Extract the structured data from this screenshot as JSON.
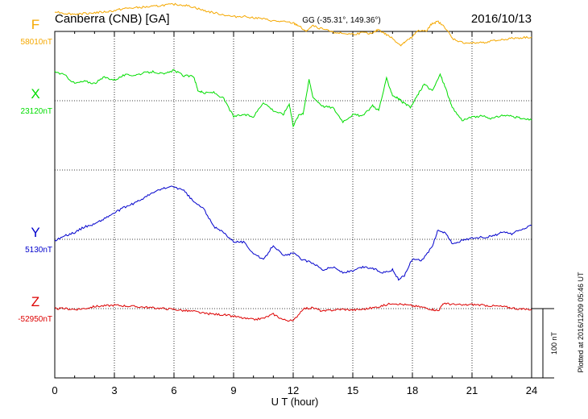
{
  "header": {
    "station": "Canberra (CNB)  [GA]",
    "coords": "GG (-35.31°, 149.36°)",
    "date": "2016/10/13"
  },
  "side_note": "Plotted at 2016/12/09 05:46 UT",
  "scale_label": "100 nT",
  "chart_data": {
    "type": "line",
    "xlabel": "U T (hour)",
    "xlim": [
      0,
      24
    ],
    "xticks": [
      "0",
      "3",
      "6",
      "9",
      "12",
      "15",
      "18",
      "21",
      "24"
    ],
    "scale_nT": 100,
    "series": [
      {
        "name": "F",
        "baseline": "58010nT",
        "color": "#f5a800",
        "baseline_offset_units": 5,
        "points": [
          [
            0,
            29
          ],
          [
            0.5,
            26
          ],
          [
            1,
            25
          ],
          [
            1.5,
            26
          ],
          [
            2,
            27
          ],
          [
            2.5,
            28
          ],
          [
            3,
            30
          ],
          [
            3.5,
            33
          ],
          [
            4,
            34
          ],
          [
            4.5,
            35
          ],
          [
            5,
            36
          ],
          [
            5.5,
            38
          ],
          [
            6,
            39
          ],
          [
            6.5,
            38
          ],
          [
            7,
            35
          ],
          [
            7.5,
            30
          ],
          [
            8,
            27
          ],
          [
            8.5,
            24
          ],
          [
            9,
            21
          ],
          [
            9.5,
            22
          ],
          [
            10,
            20
          ],
          [
            10.5,
            18
          ],
          [
            11,
            15
          ],
          [
            11.5,
            14
          ],
          [
            12,
            12
          ],
          [
            12.3,
            8
          ],
          [
            12.6,
            0
          ],
          [
            13,
            8
          ],
          [
            13.5,
            3
          ],
          [
            14,
            -1
          ],
          [
            14.5,
            -3
          ],
          [
            15,
            -4
          ],
          [
            15.5,
            -2
          ],
          [
            16,
            -3
          ],
          [
            16.3,
            3
          ],
          [
            16.6,
            -3
          ],
          [
            17,
            -10
          ],
          [
            17.4,
            -20
          ],
          [
            17.6,
            -16
          ],
          [
            18,
            -8
          ],
          [
            18.3,
            2
          ],
          [
            18.7,
            0
          ],
          [
            19,
            12
          ],
          [
            19.3,
            14
          ],
          [
            19.7,
            4
          ],
          [
            20,
            -10
          ],
          [
            20.5,
            -16
          ],
          [
            21,
            -17
          ],
          [
            21.5,
            -16
          ],
          [
            22,
            -14
          ],
          [
            22.5,
            -12
          ],
          [
            23,
            -10
          ],
          [
            23.5,
            -9
          ],
          [
            24,
            -8
          ]
        ]
      },
      {
        "name": "X",
        "baseline": "23120nT",
        "color": "#00dd00",
        "baseline_offset_units": 4,
        "points": [
          [
            0,
            42
          ],
          [
            0.5,
            37
          ],
          [
            1,
            25
          ],
          [
            1.5,
            28
          ],
          [
            2,
            25
          ],
          [
            2.5,
            34
          ],
          [
            3,
            30
          ],
          [
            3.5,
            37
          ],
          [
            4,
            37
          ],
          [
            4.5,
            40
          ],
          [
            5,
            42
          ],
          [
            5.5,
            38
          ],
          [
            6,
            44
          ],
          [
            6.5,
            36
          ],
          [
            7,
            35
          ],
          [
            7.2,
            15
          ],
          [
            7.5,
            11
          ],
          [
            8,
            12
          ],
          [
            8.5,
            3
          ],
          [
            9,
            -23
          ],
          [
            9.5,
            -20
          ],
          [
            10,
            -23
          ],
          [
            10.5,
            -2
          ],
          [
            11,
            -14
          ],
          [
            11.5,
            -20
          ],
          [
            11.8,
            -4
          ],
          [
            12,
            -36
          ],
          [
            12.3,
            -20
          ],
          [
            12.5,
            -18
          ],
          [
            12.8,
            30
          ],
          [
            13,
            5
          ],
          [
            13.5,
            -8
          ],
          [
            14,
            -10
          ],
          [
            14.5,
            -30
          ],
          [
            15,
            -20
          ],
          [
            15.5,
            -22
          ],
          [
            16,
            -7
          ],
          [
            16.3,
            -14
          ],
          [
            16.7,
            32
          ],
          [
            17,
            8
          ],
          [
            17.3,
            3
          ],
          [
            17.5,
            -2
          ],
          [
            17.9,
            -10
          ],
          [
            18.3,
            10
          ],
          [
            18.6,
            24
          ],
          [
            19,
            14
          ],
          [
            19.4,
            38
          ],
          [
            19.7,
            16
          ],
          [
            20,
            -10
          ],
          [
            20.5,
            -28
          ],
          [
            21,
            -24
          ],
          [
            21.5,
            -22
          ],
          [
            22,
            -26
          ],
          [
            22.5,
            -21
          ],
          [
            23,
            -22
          ],
          [
            23.5,
            -26
          ],
          [
            24,
            -28
          ]
        ]
      },
      {
        "name": "Y",
        "baseline": "5130nT",
        "color": "#0000cc",
        "baseline_offset_units": 2,
        "points": [
          [
            0,
            -2
          ],
          [
            0.5,
            5
          ],
          [
            1,
            10
          ],
          [
            1.5,
            18
          ],
          [
            2,
            22
          ],
          [
            2.5,
            30
          ],
          [
            3,
            38
          ],
          [
            3.5,
            46
          ],
          [
            4,
            52
          ],
          [
            4.5,
            60
          ],
          [
            5,
            68
          ],
          [
            5.5,
            74
          ],
          [
            6,
            76
          ],
          [
            6.5,
            70
          ],
          [
            7,
            54
          ],
          [
            7.5,
            44
          ],
          [
            8,
            18
          ],
          [
            8.5,
            10
          ],
          [
            9,
            -3
          ],
          [
            9.5,
            -4
          ],
          [
            10,
            -20
          ],
          [
            10.5,
            -30
          ],
          [
            11,
            -8
          ],
          [
            11.5,
            -24
          ],
          [
            12,
            -20
          ],
          [
            12.5,
            -30
          ],
          [
            13,
            -34
          ],
          [
            13.5,
            -44
          ],
          [
            14,
            -40
          ],
          [
            14.5,
            -48
          ],
          [
            15,
            -46
          ],
          [
            15.5,
            -40
          ],
          [
            16,
            -42
          ],
          [
            16.5,
            -48
          ],
          [
            17,
            -44
          ],
          [
            17.3,
            -58
          ],
          [
            17.6,
            -52
          ],
          [
            18,
            -28
          ],
          [
            18.5,
            -30
          ],
          [
            19,
            -10
          ],
          [
            19.3,
            14
          ],
          [
            19.7,
            8
          ],
          [
            20,
            -6
          ],
          [
            20.5,
            -2
          ],
          [
            21,
            2
          ],
          [
            21.5,
            3
          ],
          [
            22,
            4
          ],
          [
            22.5,
            10
          ],
          [
            23,
            8
          ],
          [
            23.5,
            14
          ],
          [
            24,
            20
          ]
        ]
      },
      {
        "name": "Z",
        "baseline": "-52950nT",
        "color": "#dd0000",
        "baseline_offset_units": 1,
        "points": [
          [
            0,
            0
          ],
          [
            0.5,
            0
          ],
          [
            1,
            -1
          ],
          [
            1.5,
            0
          ],
          [
            2,
            3
          ],
          [
            2.5,
            4
          ],
          [
            3,
            5
          ],
          [
            3.5,
            4
          ],
          [
            4,
            3
          ],
          [
            4.5,
            2
          ],
          [
            5,
            1
          ],
          [
            5.5,
            0
          ],
          [
            6,
            -1
          ],
          [
            6.5,
            -3
          ],
          [
            7,
            -4
          ],
          [
            7.5,
            -7
          ],
          [
            8,
            -8
          ],
          [
            8.5,
            -9
          ],
          [
            9,
            -11
          ],
          [
            9.5,
            -14
          ],
          [
            10,
            -16
          ],
          [
            10.5,
            -14
          ],
          [
            11,
            -8
          ],
          [
            11.5,
            -16
          ],
          [
            12,
            -18
          ],
          [
            12.5,
            0
          ],
          [
            13,
            1
          ],
          [
            13.5,
            -4
          ],
          [
            14,
            -2
          ],
          [
            14.5,
            -1
          ],
          [
            15,
            -2
          ],
          [
            15.5,
            -1
          ],
          [
            16,
            1
          ],
          [
            16.5,
            4
          ],
          [
            17,
            8
          ],
          [
            17.5,
            6
          ],
          [
            18,
            4
          ],
          [
            18.5,
            2
          ],
          [
            19,
            -1
          ],
          [
            19.3,
            -3
          ],
          [
            19.6,
            8
          ],
          [
            20,
            6
          ],
          [
            20.5,
            5
          ],
          [
            21,
            6
          ],
          [
            21.5,
            5
          ],
          [
            22,
            4
          ],
          [
            22.5,
            3
          ],
          [
            23,
            1
          ],
          [
            23.5,
            -1
          ],
          [
            24,
            -1
          ]
        ]
      }
    ]
  }
}
